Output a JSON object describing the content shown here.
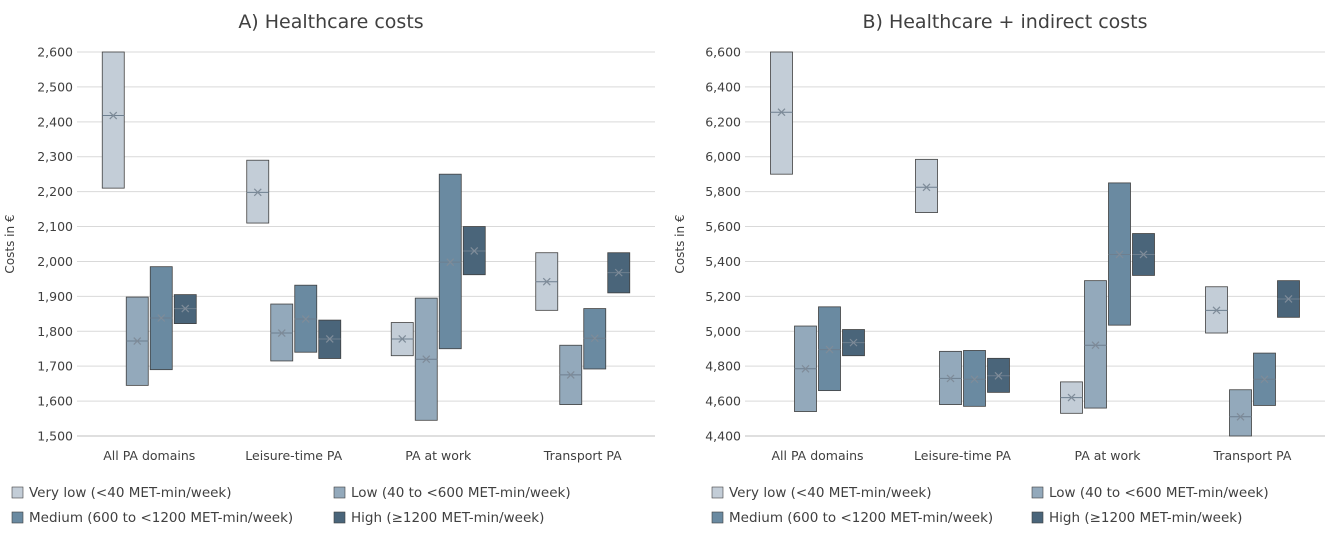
{
  "legend": {
    "items": [
      {
        "label": "Very low (<40 MET-min/week)",
        "color": "#c3cdd7"
      },
      {
        "label": "Low (40 to <600 MET-min/week)",
        "color": "#93a9bb"
      },
      {
        "label": "Medium (600 to <1200 MET-min/week)",
        "color": "#6a8aa1"
      },
      {
        "label": "High (≥1200 MET-min/week)",
        "color": "#4a657a"
      }
    ]
  },
  "chart_data": [
    {
      "type": "boxplot",
      "title": "A) Healthcare costs",
      "ylabel": "Costs in €",
      "xlabel": "",
      "ylim": [
        1500,
        2600
      ],
      "yticks": [
        1500,
        1600,
        1700,
        1800,
        1900,
        2000,
        2100,
        2200,
        2300,
        2400,
        2500,
        2600
      ],
      "ytick_labels": [
        "1,500",
        "1,600",
        "1,700",
        "1,800",
        "1,900",
        "2,000",
        "2,100",
        "2,200",
        "2,300",
        "2,400",
        "2,500",
        "2,600"
      ],
      "grid": true,
      "legend_position": "bottom",
      "categories": [
        "All PA domains",
        "Leisure-time PA",
        "PA at work",
        "Transport PA"
      ],
      "series": [
        {
          "name": "Very low (<40 MET-min/week)",
          "low": [
            2210,
            2110,
            1730,
            1860
          ],
          "mid": [
            2418,
            2198,
            1778,
            1942
          ],
          "high": [
            2600,
            2290,
            1825,
            2025
          ]
        },
        {
          "name": "Low (40 to <600 MET-min/week)",
          "low": [
            1645,
            1715,
            1545,
            1590
          ],
          "mid": [
            1772,
            1795,
            1720,
            1675
          ],
          "high": [
            1898,
            1878,
            1895,
            1760
          ]
        },
        {
          "name": "Medium (600 to <1200 MET-min/week)",
          "low": [
            1690,
            1740,
            1750,
            1692
          ],
          "mid": [
            1838,
            1835,
            1998,
            1780
          ],
          "high": [
            1985,
            1932,
            2250,
            1865
          ]
        },
        {
          "name": "High (≥1200 MET-min/week)",
          "low": [
            1822,
            1722,
            1962,
            1910
          ],
          "mid": [
            1865,
            1778,
            2030,
            1968
          ],
          "high": [
            1905,
            1832,
            2100,
            2025
          ]
        }
      ]
    },
    {
      "type": "boxplot",
      "title": "B) Healthcare + indirect costs",
      "ylabel": "Costs in €",
      "xlabel": "",
      "ylim": [
        4400,
        6600
      ],
      "yticks": [
        4400,
        4600,
        4800,
        5000,
        5200,
        5400,
        5600,
        5800,
        6000,
        6200,
        6400,
        6600
      ],
      "ytick_labels": [
        "4,400",
        "4,600",
        "4,800",
        "5,000",
        "5,200",
        "5,400",
        "5,600",
        "5,800",
        "6,000",
        "6,200",
        "6,400",
        "6,600"
      ],
      "grid": true,
      "legend_position": "bottom",
      "categories": [
        "All PA domains",
        "Leisure-time PA",
        "PA at work",
        "Transport PA"
      ],
      "series": [
        {
          "name": "Very low (<40 MET-min/week)",
          "low": [
            5900,
            5680,
            4530,
            4990
          ],
          "mid": [
            6255,
            5825,
            4620,
            5120
          ],
          "high": [
            6600,
            5985,
            4710,
            5255
          ]
        },
        {
          "name": "Low (40 to <600 MET-min/week)",
          "low": [
            4540,
            4580,
            4560,
            4390
          ],
          "mid": [
            4785,
            4730,
            4920,
            4510
          ],
          "high": [
            5030,
            4885,
            5290,
            4665
          ]
        },
        {
          "name": "Medium (600 to <1200 MET-min/week)",
          "low": [
            4660,
            4570,
            5035,
            4575
          ],
          "mid": [
            4895,
            4725,
            5440,
            4725
          ],
          "high": [
            5140,
            4890,
            5850,
            4875
          ]
        },
        {
          "name": "High (≥1200 MET-min/week)",
          "low": [
            4860,
            4650,
            5320,
            5080
          ],
          "mid": [
            4935,
            4745,
            5440,
            5185
          ],
          "high": [
            5010,
            4845,
            5560,
            5290
          ]
        }
      ]
    }
  ]
}
